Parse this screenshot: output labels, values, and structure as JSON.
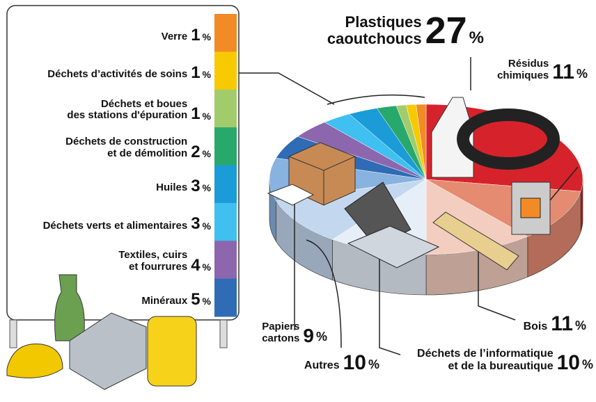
{
  "chart_data": {
    "type": "pie",
    "categories": [
      "Plastiques\ncaoutchoucs",
      "Résidus\nchimiques",
      "Bois",
      "Déchets de l’informatique\net de la bureautique",
      "Autres",
      "Papiers\ncartons",
      "Minéraux",
      "Textiles, cuirs\net fourrures",
      "Déchets verts et alimentaires",
      "Huiles",
      "Déchets de construction\net de démolition",
      "Déchets et boues\ndes stations d'épuration",
      "Déchets d’activités de soins",
      "Verre"
    ],
    "values": [
      27,
      11,
      11,
      10,
      10,
      9,
      5,
      4,
      3,
      3,
      2,
      1,
      1,
      1
    ],
    "unit": "%",
    "colors": [
      "#d6232b",
      "#e48b72",
      "#f3cdbf",
      "#e6eef7",
      "#c3d8ee",
      "#88b2df",
      "#2f6cb5",
      "#8c67ae",
      "#3fc0f0",
      "#1b9bd7",
      "#29a86b",
      "#a2cc6c",
      "#f7c900",
      "#f28b26"
    ],
    "placement": [
      "outside",
      "outside",
      "outside",
      "outside",
      "outside",
      "outside",
      "legend",
      "legend",
      "legend",
      "legend",
      "legend",
      "legend",
      "legend",
      "legend"
    ]
  }
}
